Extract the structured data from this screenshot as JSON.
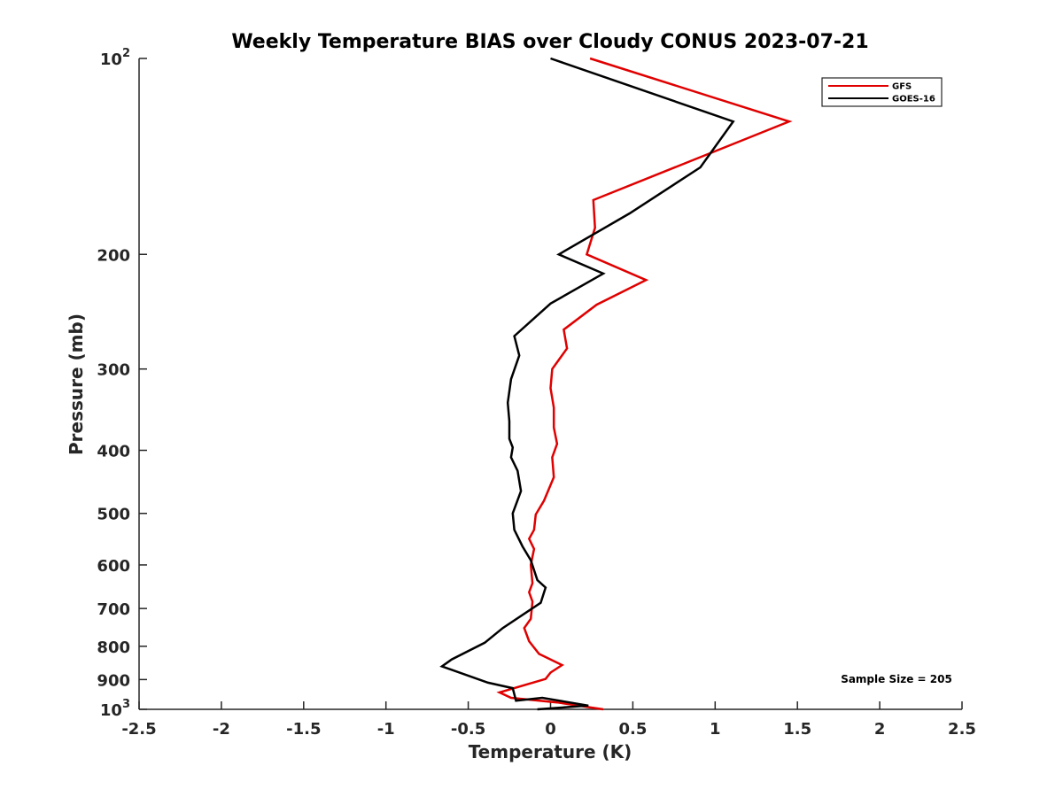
{
  "chart_data": {
    "type": "line",
    "title": "Weekly Temperature BIAS over Cloudy CONUS 2023-07-21",
    "xlabel": "Temperature (K)",
    "ylabel": "Pressure (mb)",
    "xlim": [
      -2.5,
      2.5
    ],
    "ylim": [
      100,
      1000
    ],
    "y_scale": "log",
    "y_reversed": true,
    "grid": false,
    "x_ticks": [
      -2.5,
      -2,
      -1.5,
      -1,
      -0.5,
      0,
      0.5,
      1,
      1.5,
      2,
      2.5
    ],
    "x_tick_labels": [
      "-2.5",
      "-2",
      "-1.5",
      "-1",
      "-0.5",
      "0",
      "0.5",
      "1",
      "1.5",
      "2",
      "2.5"
    ],
    "y_ticks": [
      {
        "value": 100,
        "base": "10",
        "exp": "2"
      },
      {
        "value": 200,
        "label": "200"
      },
      {
        "value": 300,
        "label": "300"
      },
      {
        "value": 400,
        "label": "400"
      },
      {
        "value": 500,
        "label": "500"
      },
      {
        "value": 600,
        "label": "600"
      },
      {
        "value": 700,
        "label": "700"
      },
      {
        "value": 800,
        "label": "800"
      },
      {
        "value": 900,
        "label": "900"
      },
      {
        "value": 1000,
        "base": "10",
        "exp": "3"
      }
    ],
    "legend_position": "top-right",
    "annotation": "Sample Size = 205",
    "series": [
      {
        "name": "GFS",
        "color": "#e00000",
        "points": [
          {
            "x": 0.24,
            "y": 100
          },
          {
            "x": 1.45,
            "y": 125
          },
          {
            "x": 0.26,
            "y": 165
          },
          {
            "x": 0.27,
            "y": 182
          },
          {
            "x": 0.22,
            "y": 200
          },
          {
            "x": 0.58,
            "y": 219
          },
          {
            "x": 0.28,
            "y": 239
          },
          {
            "x": 0.08,
            "y": 261
          },
          {
            "x": 0.1,
            "y": 279
          },
          {
            "x": 0.01,
            "y": 300
          },
          {
            "x": 0.0,
            "y": 321
          },
          {
            "x": 0.02,
            "y": 344
          },
          {
            "x": 0.02,
            "y": 369
          },
          {
            "x": 0.04,
            "y": 391
          },
          {
            "x": 0.01,
            "y": 410
          },
          {
            "x": 0.02,
            "y": 440
          },
          {
            "x": -0.04,
            "y": 478
          },
          {
            "x": -0.09,
            "y": 502
          },
          {
            "x": -0.1,
            "y": 530
          },
          {
            "x": -0.13,
            "y": 547
          },
          {
            "x": -0.1,
            "y": 567
          },
          {
            "x": -0.12,
            "y": 600
          },
          {
            "x": -0.11,
            "y": 640
          },
          {
            "x": -0.13,
            "y": 661
          },
          {
            "x": -0.11,
            "y": 683
          },
          {
            "x": -0.12,
            "y": 726
          },
          {
            "x": -0.16,
            "y": 750
          },
          {
            "x": -0.13,
            "y": 786
          },
          {
            "x": -0.07,
            "y": 822
          },
          {
            "x": 0.07,
            "y": 855
          },
          {
            "x": 0.0,
            "y": 878
          },
          {
            "x": -0.03,
            "y": 898
          },
          {
            "x": -0.31,
            "y": 942
          },
          {
            "x": -0.24,
            "y": 960
          },
          {
            "x": 0.04,
            "y": 976
          },
          {
            "x": 0.32,
            "y": 1000
          }
        ]
      },
      {
        "name": "GOES-16",
        "color": "#000000",
        "points": [
          {
            "x": 0.0,
            "y": 100
          },
          {
            "x": 1.11,
            "y": 125
          },
          {
            "x": 0.91,
            "y": 147
          },
          {
            "x": 0.48,
            "y": 173
          },
          {
            "x": 0.05,
            "y": 200
          },
          {
            "x": 0.32,
            "y": 214
          },
          {
            "x": 0.0,
            "y": 238
          },
          {
            "x": -0.22,
            "y": 267
          },
          {
            "x": -0.19,
            "y": 286
          },
          {
            "x": -0.24,
            "y": 311
          },
          {
            "x": -0.26,
            "y": 338
          },
          {
            "x": -0.25,
            "y": 361
          },
          {
            "x": -0.25,
            "y": 384
          },
          {
            "x": -0.23,
            "y": 396
          },
          {
            "x": -0.24,
            "y": 410
          },
          {
            "x": -0.2,
            "y": 430
          },
          {
            "x": -0.18,
            "y": 462
          },
          {
            "x": -0.23,
            "y": 500
          },
          {
            "x": -0.22,
            "y": 530
          },
          {
            "x": -0.17,
            "y": 562
          },
          {
            "x": -0.12,
            "y": 590
          },
          {
            "x": -0.08,
            "y": 633
          },
          {
            "x": -0.03,
            "y": 650
          },
          {
            "x": -0.06,
            "y": 686
          },
          {
            "x": -0.29,
            "y": 750
          },
          {
            "x": -0.4,
            "y": 790
          },
          {
            "x": -0.6,
            "y": 838
          },
          {
            "x": -0.66,
            "y": 859
          },
          {
            "x": -0.38,
            "y": 910
          },
          {
            "x": -0.23,
            "y": 928
          },
          {
            "x": -0.21,
            "y": 970
          },
          {
            "x": -0.05,
            "y": 960
          },
          {
            "x": 0.23,
            "y": 987
          },
          {
            "x": -0.08,
            "y": 1000
          }
        ]
      }
    ]
  }
}
